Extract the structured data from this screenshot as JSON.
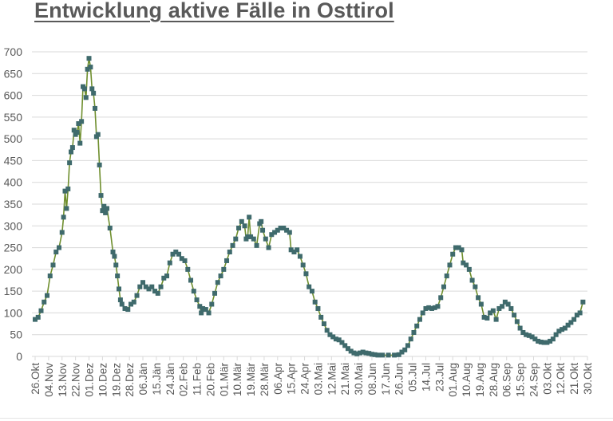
{
  "title": "Entwicklung aktive Fälle in Osttirol",
  "colors": {
    "line": "#6f8f2e",
    "marker": "#3f6a6c",
    "grid": "#d9d9d9",
    "text": "#595959"
  },
  "chart_data": {
    "type": "line",
    "title": "Entwicklung aktive Fälle in Osttirol",
    "xlabel": "",
    "ylabel": "",
    "ylim": [
      0,
      700
    ],
    "yticks": [
      0,
      50,
      100,
      150,
      200,
      250,
      300,
      350,
      400,
      450,
      500,
      550,
      600,
      650,
      700
    ],
    "grid": true,
    "legend": "none",
    "x_tick_labels": [
      "26.Okt",
      "04.Nov",
      "13.Nov",
      "22.Nov",
      "01.Dez",
      "10.Dez",
      "19.Dez",
      "28.Dez",
      "06.Jän",
      "15.Jän",
      "24.Jän",
      "02.Feb",
      "11.Feb",
      "20.Feb",
      "01.Mär",
      "10.Mär",
      "19.Mär",
      "28.Mär",
      "06.Apr",
      "15.Apr",
      "24.Apr",
      "03.Mai",
      "12.Mai",
      "21.Mai",
      "30.Mai",
      "08.Jun",
      "17.Jun",
      "26.Jun",
      "05.Jul",
      "14.Jul",
      "23.Jul",
      "01.Aug",
      "10.Aug",
      "19.Aug",
      "28.Aug",
      "06.Sep",
      "15.Sep",
      "24.Sep",
      "03.Okt",
      "12.Okt",
      "21.Okt",
      "30.Okt"
    ],
    "x_unit": "days since 26.Okt",
    "series": [
      {
        "name": "Aktive Fälle",
        "points": [
          [
            0,
            85
          ],
          [
            2,
            90
          ],
          [
            4,
            105
          ],
          [
            6,
            125
          ],
          [
            8,
            140
          ],
          [
            10,
            185
          ],
          [
            12,
            210
          ],
          [
            14,
            240
          ],
          [
            16,
            250
          ],
          [
            18,
            285
          ],
          [
            19,
            320
          ],
          [
            20,
            380
          ],
          [
            21,
            340
          ],
          [
            22,
            385
          ],
          [
            23,
            445
          ],
          [
            24,
            470
          ],
          [
            25,
            480
          ],
          [
            26,
            520
          ],
          [
            27,
            510
          ],
          [
            28,
            515
          ],
          [
            29,
            535
          ],
          [
            30,
            490
          ],
          [
            31,
            540
          ],
          [
            32,
            620
          ],
          [
            33,
            615
          ],
          [
            34,
            595
          ],
          [
            35,
            660
          ],
          [
            36,
            685
          ],
          [
            37,
            665
          ],
          [
            38,
            615
          ],
          [
            39,
            605
          ],
          [
            40,
            570
          ],
          [
            41,
            505
          ],
          [
            42,
            510
          ],
          [
            43,
            440
          ],
          [
            44,
            370
          ],
          [
            45,
            335
          ],
          [
            46,
            345
          ],
          [
            47,
            330
          ],
          [
            48,
            340
          ],
          [
            50,
            295
          ],
          [
            52,
            240
          ],
          [
            53,
            230
          ],
          [
            54,
            210
          ],
          [
            55,
            185
          ],
          [
            56,
            155
          ],
          [
            57,
            130
          ],
          [
            58,
            120
          ],
          [
            60,
            110
          ],
          [
            62,
            108
          ],
          [
            64,
            120
          ],
          [
            66,
            125
          ],
          [
            68,
            140
          ],
          [
            70,
            160
          ],
          [
            72,
            170
          ],
          [
            74,
            160
          ],
          [
            76,
            155
          ],
          [
            78,
            160
          ],
          [
            80,
            150
          ],
          [
            82,
            145
          ],
          [
            84,
            160
          ],
          [
            86,
            180
          ],
          [
            88,
            185
          ],
          [
            90,
            215
          ],
          [
            92,
            235
          ],
          [
            94,
            240
          ],
          [
            96,
            235
          ],
          [
            98,
            225
          ],
          [
            100,
            220
          ],
          [
            102,
            200
          ],
          [
            104,
            175
          ],
          [
            106,
            150
          ],
          [
            108,
            130
          ],
          [
            110,
            115
          ],
          [
            111,
            100
          ],
          [
            112,
            110
          ],
          [
            114,
            108
          ],
          [
            116,
            100
          ],
          [
            118,
            120
          ],
          [
            120,
            145
          ],
          [
            122,
            170
          ],
          [
            124,
            185
          ],
          [
            126,
            200
          ],
          [
            128,
            220
          ],
          [
            130,
            240
          ],
          [
            132,
            255
          ],
          [
            134,
            270
          ],
          [
            136,
            295
          ],
          [
            138,
            310
          ],
          [
            140,
            300
          ],
          [
            141,
            270
          ],
          [
            142,
            275
          ],
          [
            143,
            320
          ],
          [
            144,
            275
          ],
          [
            146,
            270
          ],
          [
            148,
            255
          ],
          [
            150,
            305
          ],
          [
            151,
            310
          ],
          [
            152,
            290
          ],
          [
            154,
            270
          ],
          [
            156,
            250
          ],
          [
            158,
            280
          ],
          [
            160,
            285
          ],
          [
            162,
            290
          ],
          [
            164,
            295
          ],
          [
            166,
            295
          ],
          [
            168,
            290
          ],
          [
            170,
            285
          ],
          [
            171,
            245
          ],
          [
            173,
            240
          ],
          [
            175,
            245
          ],
          [
            177,
            230
          ],
          [
            179,
            210
          ],
          [
            181,
            190
          ],
          [
            183,
            160
          ],
          [
            185,
            150
          ],
          [
            187,
            125
          ],
          [
            189,
            110
          ],
          [
            191,
            90
          ],
          [
            193,
            75
          ],
          [
            195,
            60
          ],
          [
            197,
            50
          ],
          [
            199,
            45
          ],
          [
            201,
            40
          ],
          [
            203,
            38
          ],
          [
            205,
            32
          ],
          [
            207,
            25
          ],
          [
            209,
            18
          ],
          [
            211,
            12
          ],
          [
            213,
            8
          ],
          [
            215,
            6
          ],
          [
            217,
            8
          ],
          [
            219,
            10
          ],
          [
            221,
            8
          ],
          [
            223,
            7
          ],
          [
            225,
            5
          ],
          [
            227,
            4
          ],
          [
            229,
            3
          ],
          [
            232,
            3
          ],
          [
            236,
            3
          ],
          [
            240,
            3
          ],
          [
            243,
            4
          ],
          [
            245,
            10
          ],
          [
            247,
            15
          ],
          [
            249,
            25
          ],
          [
            251,
            40
          ],
          [
            253,
            55
          ],
          [
            255,
            70
          ],
          [
            257,
            85
          ],
          [
            259,
            100
          ],
          [
            261,
            110
          ],
          [
            263,
            112
          ],
          [
            265,
            110
          ],
          [
            267,
            112
          ],
          [
            269,
            115
          ],
          [
            271,
            135
          ],
          [
            273,
            160
          ],
          [
            275,
            185
          ],
          [
            277,
            210
          ],
          [
            279,
            235
          ],
          [
            281,
            250
          ],
          [
            283,
            250
          ],
          [
            285,
            245
          ],
          [
            286,
            215
          ],
          [
            288,
            210
          ],
          [
            290,
            200
          ],
          [
            292,
            175
          ],
          [
            294,
            160
          ],
          [
            296,
            135
          ],
          [
            298,
            120
          ],
          [
            300,
            90
          ],
          [
            302,
            88
          ],
          [
            304,
            100
          ],
          [
            306,
            105
          ],
          [
            308,
            85
          ],
          [
            310,
            110
          ],
          [
            312,
            115
          ],
          [
            314,
            125
          ],
          [
            316,
            120
          ],
          [
            318,
            110
          ],
          [
            320,
            95
          ],
          [
            322,
            80
          ],
          [
            324,
            65
          ],
          [
            326,
            55
          ],
          [
            328,
            50
          ],
          [
            330,
            48
          ],
          [
            332,
            45
          ],
          [
            334,
            40
          ],
          [
            336,
            35
          ],
          [
            338,
            33
          ],
          [
            340,
            32
          ],
          [
            342,
            32
          ],
          [
            344,
            35
          ],
          [
            346,
            40
          ],
          [
            348,
            50
          ],
          [
            350,
            58
          ],
          [
            352,
            62
          ],
          [
            354,
            65
          ],
          [
            356,
            72
          ],
          [
            358,
            78
          ],
          [
            360,
            85
          ],
          [
            362,
            95
          ],
          [
            364,
            100
          ],
          [
            366,
            125
          ]
        ]
      }
    ]
  }
}
